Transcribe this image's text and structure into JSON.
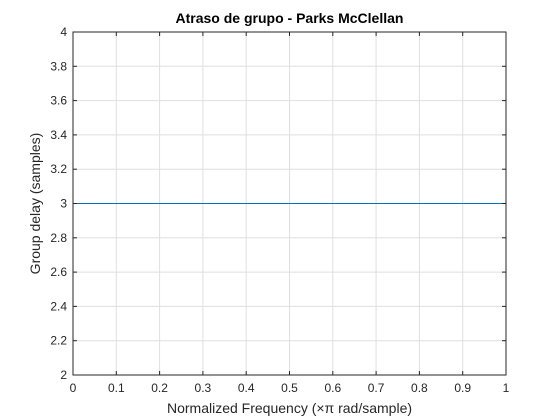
{
  "chart_data": {
    "type": "line",
    "title": "Atraso de grupo - Parks McClellan",
    "xlabel": "Normalized Frequency  (×π rad/sample)",
    "ylabel": "Group delay (samples)",
    "xlim": [
      0,
      1
    ],
    "ylim": [
      2,
      4
    ],
    "xticks": [
      "0",
      "0.1",
      "0.2",
      "0.3",
      "0.4",
      "0.5",
      "0.6",
      "0.7",
      "0.8",
      "0.9",
      "1"
    ],
    "yticks": [
      "2",
      "2.2",
      "2.4",
      "2.6",
      "2.8",
      "3",
      "3.2",
      "3.4",
      "3.6",
      "3.8",
      "4"
    ],
    "grid": true,
    "series": [
      {
        "x": [
          0,
          1
        ],
        "y": [
          3,
          3
        ],
        "color": "#0072BD"
      }
    ]
  }
}
